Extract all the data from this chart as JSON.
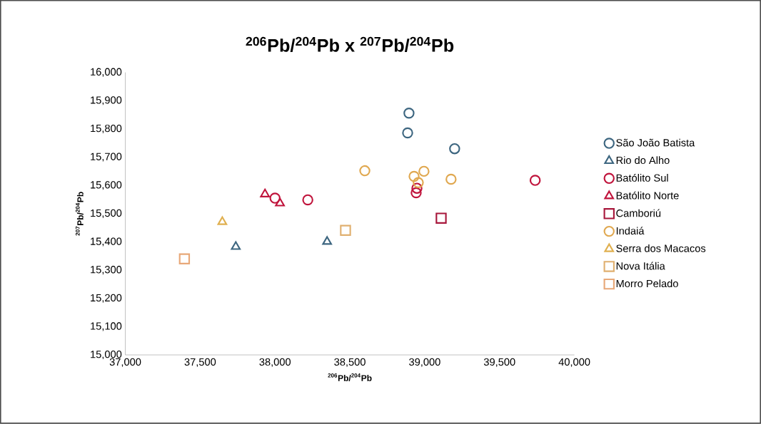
{
  "chart_data": {
    "type": "scatter",
    "title": "$^{206}$Pb/$^{204}$Pb x $^{207}$Pb/$^{204}$Pb",
    "xlabel": "$^{206}$Pb/$^{204}$Pb",
    "ylabel": "$^{207}$Pb/$^{204}$Pb",
    "xlim": [
      37000,
      40000
    ],
    "ylim": [
      15000,
      16000
    ],
    "xticks": [
      {
        "value": 37000,
        "label": "37,000"
      },
      {
        "value": 37500,
        "label": "37,500"
      },
      {
        "value": 38000,
        "label": "38,000"
      },
      {
        "value": 38500,
        "label": "38,500"
      },
      {
        "value": 39000,
        "label": "39,000"
      },
      {
        "value": 39500,
        "label": "39,500"
      },
      {
        "value": 40000,
        "label": "40,000"
      }
    ],
    "yticks": [
      {
        "value": 15000,
        "label": "15,000"
      },
      {
        "value": 15100,
        "label": "15,100"
      },
      {
        "value": 15200,
        "label": "15,200"
      },
      {
        "value": 15300,
        "label": "15,300"
      },
      {
        "value": 15400,
        "label": "15,400"
      },
      {
        "value": 15500,
        "label": "15,500"
      },
      {
        "value": 15600,
        "label": "15,600"
      },
      {
        "value": 15700,
        "label": "15,700"
      },
      {
        "value": 15800,
        "label": "15,800"
      },
      {
        "value": 15900,
        "label": "15,900"
      },
      {
        "value": 16000,
        "label": "16,000"
      }
    ],
    "grid": false,
    "legend": "right",
    "series": [
      {
        "name": "São João Batista",
        "color": "#3d6680",
        "marker": "circle",
        "x": [
          38895,
          38886,
          39200
        ],
        "values": [
          15856,
          15786,
          15730
        ]
      },
      {
        "name": "Rio do Alho",
        "color": "#3d6680",
        "marker": "triangle",
        "x": [
          37738,
          38348
        ],
        "values": [
          15383,
          15401
        ]
      },
      {
        "name": "Batólito Sul",
        "color": "#c0143c",
        "marker": "circle",
        "x": [
          38000,
          38219,
          38948,
          38943,
          39738
        ],
        "values": [
          15555,
          15549,
          15590,
          15574,
          15618
        ]
      },
      {
        "name": "Batólito Norte",
        "color": "#c0143c",
        "marker": "triangle",
        "x": [
          37933,
          38033
        ],
        "values": [
          15569,
          15537
        ]
      },
      {
        "name": "Camboriú",
        "color": "#a8183c",
        "marker": "square",
        "x": [
          39110
        ],
        "values": [
          15484
        ]
      },
      {
        "name": "Indaiá",
        "color": "#e0a850",
        "marker": "circle",
        "x": [
          38600,
          38929,
          38995,
          38957,
          39176
        ],
        "values": [
          15652,
          15632,
          15650,
          15610,
          15622
        ]
      },
      {
        "name": "Serra dos Macacos",
        "color": "#e0b050",
        "marker": "triangle",
        "x": [
          37648
        ],
        "values": [
          15471
        ]
      },
      {
        "name": "Nova Itália",
        "color": "#e0b070",
        "marker": "square",
        "x": [
          38471
        ],
        "values": [
          15441
        ]
      },
      {
        "name": "Morro Pelado",
        "color": "#e8a878",
        "marker": "square",
        "x": [
          37395
        ],
        "values": [
          15340
        ]
      }
    ]
  }
}
